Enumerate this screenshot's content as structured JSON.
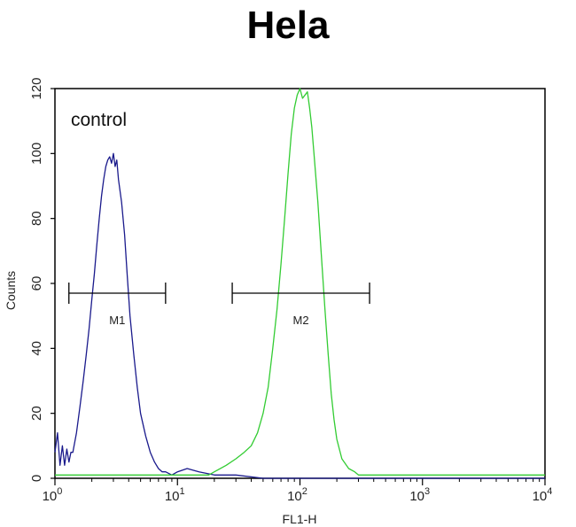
{
  "chart_data": {
    "type": "line",
    "title": "Hela",
    "xlabel": "FL1-H",
    "ylabel": "Counts",
    "x_scale": "log",
    "xlim": [
      1,
      10000
    ],
    "ylim": [
      0,
      120
    ],
    "x_ticks": [
      {
        "value": 1,
        "base": "10",
        "exp": "0"
      },
      {
        "value": 10,
        "base": "10",
        "exp": "1"
      },
      {
        "value": 100,
        "base": "10",
        "exp": "2"
      },
      {
        "value": 1000,
        "base": "10",
        "exp": "3"
      },
      {
        "value": 10000,
        "base": "10",
        "exp": "4"
      }
    ],
    "y_ticks": [
      "0",
      "20",
      "40",
      "60",
      "80",
      "100",
      "120"
    ],
    "annotation": "control",
    "series": [
      {
        "color": "#1a1a8c",
        "x": [
          1.0,
          1.05,
          1.1,
          1.15,
          1.2,
          1.25,
          1.3,
          1.35,
          1.4,
          1.5,
          1.6,
          1.7,
          1.8,
          1.9,
          2.0,
          2.1,
          2.2,
          2.3,
          2.4,
          2.5,
          2.6,
          2.7,
          2.8,
          2.9,
          3.0,
          3.1,
          3.2,
          3.3,
          3.5,
          3.7,
          3.9,
          4.1,
          4.4,
          4.7,
          5.0,
          5.5,
          6.0,
          6.5,
          7.0,
          7.5,
          8.0,
          9.0,
          10,
          12,
          15,
          20,
          30,
          50,
          80,
          150,
          300,
          1000,
          10000
        ],
        "y": [
          8,
          14,
          4,
          10,
          4,
          9,
          5,
          8,
          8,
          14,
          22,
          30,
          38,
          46,
          55,
          63,
          72,
          80,
          87,
          92,
          96,
          98,
          99,
          97,
          100,
          96,
          98,
          92,
          85,
          75,
          62,
          50,
          38,
          28,
          20,
          13,
          8,
          5,
          3,
          2,
          2,
          1,
          2,
          3,
          2,
          1,
          1,
          0,
          0,
          0,
          0,
          0,
          0
        ]
      },
      {
        "color": "#33cc33",
        "x": [
          1,
          5,
          10,
          12,
          15,
          18,
          20,
          25,
          30,
          35,
          40,
          45,
          50,
          55,
          60,
          65,
          70,
          75,
          80,
          85,
          90,
          95,
          100,
          105,
          110,
          115,
          120,
          125,
          130,
          140,
          150,
          160,
          170,
          180,
          190,
          200,
          220,
          250,
          280,
          300,
          350,
          500,
          1000,
          3000,
          10000
        ],
        "y": [
          1,
          1,
          1,
          1,
          1,
          1,
          2,
          4,
          6,
          8,
          10,
          14,
          20,
          28,
          40,
          52,
          66,
          80,
          94,
          106,
          114,
          118,
          120,
          117,
          118,
          119,
          114,
          108,
          100,
          85,
          68,
          52,
          38,
          26,
          18,
          12,
          6,
          3,
          2,
          1,
          1,
          1,
          1,
          1,
          1
        ]
      }
    ],
    "markers": [
      {
        "label": "M1",
        "x_start": 1.3,
        "x_end": 8.0,
        "y": 57
      },
      {
        "label": "M2",
        "x_start": 28,
        "x_end": 370,
        "y": 57
      }
    ]
  }
}
